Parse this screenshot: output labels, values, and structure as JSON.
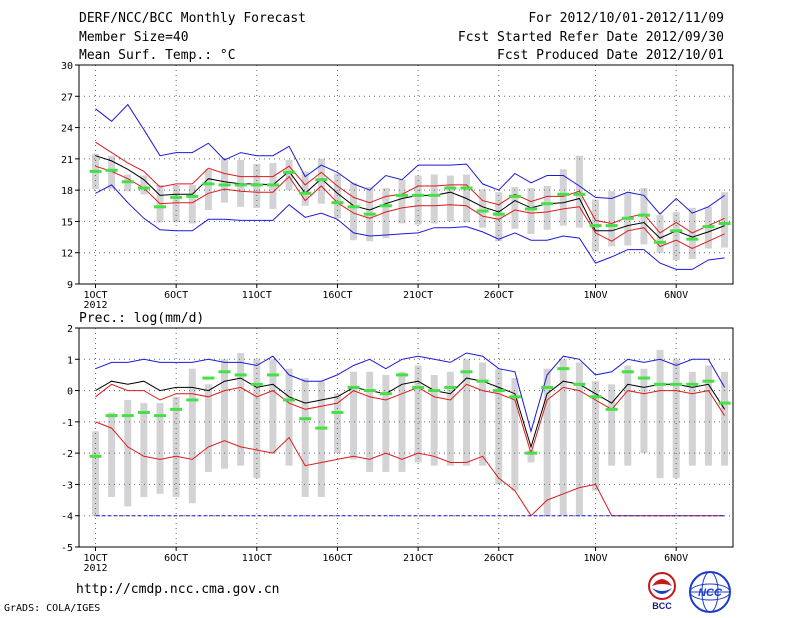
{
  "header": {
    "title": "DERF/NCC/BCC Monthly Forecast",
    "member": "Member Size=40",
    "variable": "Mean Surf. Temp.: °C",
    "period": "For 2012/10/01-2012/11/09",
    "started": "Fcst Started Refer Date 2012/09/30",
    "produced": "Fcst Produced Date 2012/10/01"
  },
  "footer": {
    "url": "http://cmdp.ncc.cma.gov.cn",
    "grads": "GrADS: COLA/IGES",
    "logo_bcc": "BCC",
    "logo_ncc": "NCC"
  },
  "colors": {
    "box": "#d3d3d6",
    "median": "#44e044",
    "envelope": "#1a1ad8",
    "quartile": "#dc1a1a",
    "mean": "#000000",
    "grid": "#666666"
  },
  "chart_data": [
    {
      "type": "line",
      "title": "Mean Surf. Temp.: °C",
      "x_tick_labels": [
        "1OCT",
        "6OCT",
        "11OCT",
        "16OCT",
        "21OCT",
        "26OCT",
        "1NOV",
        "6NOV"
      ],
      "x_tick_days": [
        1,
        6,
        11,
        16,
        21,
        26,
        32,
        37
      ],
      "year_label": "2012",
      "ylim": [
        9,
        30
      ],
      "yticks": [
        9,
        12,
        15,
        18,
        21,
        24,
        27,
        30
      ],
      "days": [
        1,
        2,
        3,
        4,
        5,
        6,
        7,
        8,
        9,
        10,
        11,
        12,
        13,
        14,
        15,
        16,
        17,
        18,
        19,
        20,
        21,
        22,
        23,
        24,
        25,
        26,
        27,
        28,
        29,
        30,
        31,
        32,
        33,
        34,
        35,
        36,
        37,
        38,
        39,
        40
      ],
      "series": [
        {
          "name": "max",
          "values": [
            25.8,
            24.6,
            26.2,
            23.8,
            21.3,
            21.6,
            21.6,
            22.5,
            20.9,
            21.6,
            21.3,
            21.3,
            22.2,
            19.3,
            20.4,
            19.7,
            18.6,
            18.0,
            19.4,
            19.0,
            20.4,
            20.4,
            20.4,
            20.5,
            18.6,
            18.0,
            19.6,
            18.7,
            19.4,
            19.4,
            18.4,
            17.3,
            17.2,
            17.8,
            17.5,
            15.7,
            17.2,
            15.8,
            16.4,
            17.5
          ]
        },
        {
          "name": "q3",
          "values": [
            22.6,
            21.6,
            20.6,
            19.8,
            18.3,
            18.6,
            18.6,
            20.1,
            19.6,
            19.3,
            19.3,
            19.3,
            20.3,
            18.5,
            19.7,
            18.4,
            17.3,
            16.8,
            17.4,
            17.6,
            18.4,
            18.4,
            18.5,
            18.5,
            17.0,
            16.6,
            17.6,
            16.9,
            17.4,
            17.4,
            17.9,
            15.1,
            14.8,
            15.4,
            15.7,
            13.9,
            14.9,
            13.9,
            14.6,
            15.3
          ]
        },
        {
          "name": "mean",
          "values": [
            21.3,
            20.8,
            20.0,
            19.0,
            17.5,
            17.6,
            17.6,
            19.1,
            18.8,
            18.6,
            18.6,
            18.5,
            19.8,
            17.7,
            19.1,
            17.7,
            16.5,
            16.1,
            16.7,
            17.2,
            17.5,
            17.5,
            17.8,
            17.2,
            16.4,
            15.9,
            17.0,
            16.3,
            16.7,
            16.8,
            17.2,
            14.1,
            14.1,
            14.6,
            14.9,
            13.4,
            14.1,
            13.5,
            14.0,
            14.6
          ]
        },
        {
          "name": "q1",
          "values": [
            20.3,
            19.8,
            19.1,
            18.2,
            16.7,
            16.8,
            16.8,
            17.7,
            18.1,
            17.9,
            17.8,
            17.8,
            19.3,
            17.0,
            18.4,
            16.8,
            15.8,
            15.3,
            15.9,
            16.3,
            16.5,
            16.5,
            16.6,
            16.5,
            15.5,
            15.2,
            16.1,
            15.8,
            15.9,
            16.2,
            16.4,
            13.9,
            13.1,
            14.1,
            14.4,
            12.6,
            13.2,
            12.4,
            13.1,
            13.8
          ]
        },
        {
          "name": "min",
          "values": [
            17.7,
            18.5,
            16.8,
            15.3,
            14.2,
            14.1,
            14.1,
            15.2,
            15.2,
            15.1,
            15.1,
            15.1,
            16.6,
            15.4,
            15.8,
            15.2,
            13.9,
            13.6,
            13.7,
            13.8,
            13.9,
            14.4,
            14.4,
            14.5,
            14.0,
            13.3,
            13.9,
            13.2,
            13.2,
            13.6,
            13.4,
            11.0,
            11.6,
            12.3,
            12.3,
            11.0,
            10.4,
            10.4,
            11.3,
            11.5
          ]
        }
      ],
      "boxes": {
        "top": [
          21.5,
          21.3,
          19.5,
          19.4,
          18.5,
          18.5,
          18.5,
          20.0,
          21.1,
          20.9,
          20.5,
          20.6,
          20.9,
          19.8,
          21.0,
          19.6,
          18.7,
          18.3,
          18.2,
          19.0,
          19.4,
          19.5,
          19.4,
          19.5,
          18.1,
          17.8,
          18.3,
          18.2,
          18.4,
          20.0,
          21.3,
          17.1,
          17.9,
          17.7,
          18.2,
          15.6,
          15.9,
          16.3,
          16.4,
          17.8
        ],
        "bottom": [
          18.1,
          18.1,
          17.9,
          17.6,
          14.9,
          14.9,
          14.8,
          16.1,
          16.8,
          16.4,
          16.3,
          16.2,
          18.0,
          16.5,
          16.7,
          15.3,
          13.2,
          13.1,
          13.4,
          14.8,
          14.7,
          14.8,
          15.0,
          14.9,
          14.4,
          13.1,
          14.3,
          13.8,
          14.2,
          14.6,
          14.4,
          12.1,
          12.6,
          12.7,
          12.8,
          12.0,
          11.3,
          11.4,
          12.4,
          12.5
        ]
      },
      "median": [
        19.8,
        19.9,
        18.8,
        18.2,
        16.4,
        17.3,
        17.4,
        18.6,
        18.5,
        18.5,
        18.5,
        18.5,
        19.7,
        17.7,
        19.0,
        16.8,
        16.4,
        15.7,
        16.5,
        17.5,
        17.5,
        17.5,
        18.2,
        18.2,
        16.0,
        15.7,
        17.4,
        16.2,
        16.7,
        17.6,
        17.6,
        14.6,
        14.6,
        15.3,
        15.6,
        13.0,
        14.1,
        13.3,
        14.5,
        14.8
      ]
    },
    {
      "type": "line",
      "title": "Prec.: log(mm/d)",
      "x_tick_labels": [
        "1OCT",
        "6OCT",
        "11OCT",
        "16OCT",
        "21OCT",
        "26OCT",
        "1NOV",
        "6NOV"
      ],
      "x_tick_days": [
        1,
        6,
        11,
        16,
        21,
        26,
        32,
        37
      ],
      "year_label": "2012",
      "ylim": [
        -5,
        2
      ],
      "yticks": [
        -5,
        -4,
        -3,
        -2,
        -1,
        0,
        1,
        2
      ],
      "days": [
        1,
        2,
        3,
        4,
        5,
        6,
        7,
        8,
        9,
        10,
        11,
        12,
        13,
        14,
        15,
        16,
        17,
        18,
        19,
        20,
        21,
        22,
        23,
        24,
        25,
        26,
        27,
        28,
        29,
        30,
        31,
        32,
        33,
        34,
        35,
        36,
        37,
        38,
        39,
        40
      ],
      "series": [
        {
          "name": "max",
          "values": [
            0.7,
            0.9,
            0.9,
            1.0,
            0.9,
            0.9,
            0.9,
            1.0,
            0.9,
            0.9,
            0.8,
            1.1,
            0.5,
            0.3,
            0.3,
            0.5,
            0.8,
            1.0,
            0.7,
            1.0,
            1.1,
            1.0,
            0.9,
            1.2,
            1.1,
            0.7,
            0.6,
            -1.3,
            0.5,
            1.1,
            1.0,
            0.5,
            0.6,
            1.0,
            0.9,
            1.0,
            0.8,
            1.0,
            1.0,
            0.1
          ]
        },
        {
          "name": "mean",
          "values": [
            0.0,
            0.3,
            0.2,
            0.3,
            0.0,
            0.1,
            0.1,
            0.0,
            0.3,
            0.4,
            0.1,
            0.2,
            -0.2,
            -0.4,
            -0.3,
            -0.2,
            0.1,
            0.0,
            -0.1,
            0.2,
            0.3,
            0.0,
            -0.1,
            0.4,
            0.3,
            0.1,
            -0.1,
            -1.8,
            -0.1,
            0.3,
            0.2,
            -0.1,
            -0.4,
            0.2,
            0.1,
            0.2,
            0.2,
            0.1,
            0.2,
            -0.6
          ]
        },
        {
          "name": "q_upper",
          "values": [
            -0.2,
            0.2,
            0.0,
            0.0,
            -0.3,
            -0.1,
            -0.1,
            -0.2,
            0.0,
            0.1,
            -0.2,
            0.0,
            -0.4,
            -0.6,
            -0.5,
            -0.4,
            0.0,
            -0.2,
            -0.3,
            -0.1,
            0.1,
            -0.2,
            -0.3,
            0.2,
            0.0,
            -0.1,
            -0.3,
            -2.0,
            -0.3,
            0.1,
            0.0,
            -0.3,
            -0.6,
            0.0,
            -0.1,
            0.0,
            0.0,
            -0.1,
            0.0,
            -0.8
          ]
        },
        {
          "name": "q_lower",
          "values": [
            -1.0,
            -1.2,
            -1.8,
            -2.1,
            -2.2,
            -2.1,
            -2.2,
            -1.8,
            -1.6,
            -1.8,
            -1.9,
            -2.0,
            -1.5,
            -2.4,
            -2.3,
            -2.2,
            -2.1,
            -2.2,
            -2.0,
            -2.2,
            -2.0,
            -2.1,
            -2.3,
            -2.3,
            -2.1,
            -2.8,
            -3.2,
            -4.0,
            -3.5,
            -3.3,
            -3.1,
            -3.0,
            -4.0,
            -4.0,
            -4.0,
            -4.0,
            -4.0,
            -4.0,
            -4.0,
            -4.0
          ]
        },
        {
          "name": "min",
          "values": [
            -4.0,
            -4.0,
            -4.0,
            -4.0,
            -4.0,
            -4.0,
            -4.0,
            -4.0,
            -4.0,
            -4.0,
            -4.0,
            -4.0,
            -4.0,
            -4.0,
            -4.0,
            -4.0,
            -4.0,
            -4.0,
            -4.0,
            -4.0,
            -4.0,
            -4.0,
            -4.0,
            -4.0,
            -4.0,
            -4.0,
            -4.0,
            -4.0,
            -4.0,
            -4.0,
            -4.0,
            -4.0,
            -4.0,
            -4.0,
            -4.0,
            -4.0,
            -4.0,
            -4.0,
            -4.0,
            -4.0
          ]
        }
      ],
      "boxes": {
        "top": [
          -1.3,
          -0.7,
          -0.3,
          -0.4,
          -0.4,
          -0.2,
          0.7,
          0.2,
          1.0,
          1.2,
          1.0,
          1.0,
          0.7,
          0.4,
          0.3,
          -0.1,
          0.6,
          0.6,
          0.5,
          0.6,
          0.8,
          0.5,
          0.6,
          1.0,
          0.9,
          0.7,
          0.4,
          -1.9,
          0.7,
          1.0,
          0.9,
          0.3,
          0.2,
          0.8,
          0.7,
          1.3,
          1.0,
          0.6,
          0.8,
          0.6
        ],
        "bottom": [
          -4.0,
          -3.4,
          -3.7,
          -3.4,
          -3.3,
          -3.4,
          -3.6,
          -2.6,
          -2.5,
          -2.4,
          -2.8,
          -2.0,
          -2.4,
          -3.4,
          -3.4,
          -2.0,
          -2.2,
          -2.6,
          -2.6,
          -2.6,
          -2.3,
          -2.4,
          -2.4,
          -2.4,
          -2.4,
          -3.0,
          -3.2,
          -2.3,
          -4.0,
          -4.0,
          -4.0,
          -3.2,
          -2.4,
          -2.4,
          -2.0,
          -2.8,
          -2.8,
          -2.4,
          -2.4,
          -2.4
        ]
      },
      "median": [
        -2.1,
        -0.8,
        -0.8,
        -0.7,
        -0.8,
        -0.6,
        -0.3,
        0.4,
        0.6,
        0.5,
        0.2,
        0.5,
        -0.3,
        -0.9,
        -1.2,
        -0.7,
        0.1,
        0.0,
        -0.1,
        0.5,
        0.1,
        0.0,
        0.1,
        0.6,
        0.3,
        0.0,
        -0.2,
        -2.0,
        0.1,
        0.7,
        0.2,
        -0.2,
        -0.6,
        0.6,
        0.4,
        0.2,
        0.2,
        0.2,
        0.3,
        -0.4
      ]
    }
  ]
}
